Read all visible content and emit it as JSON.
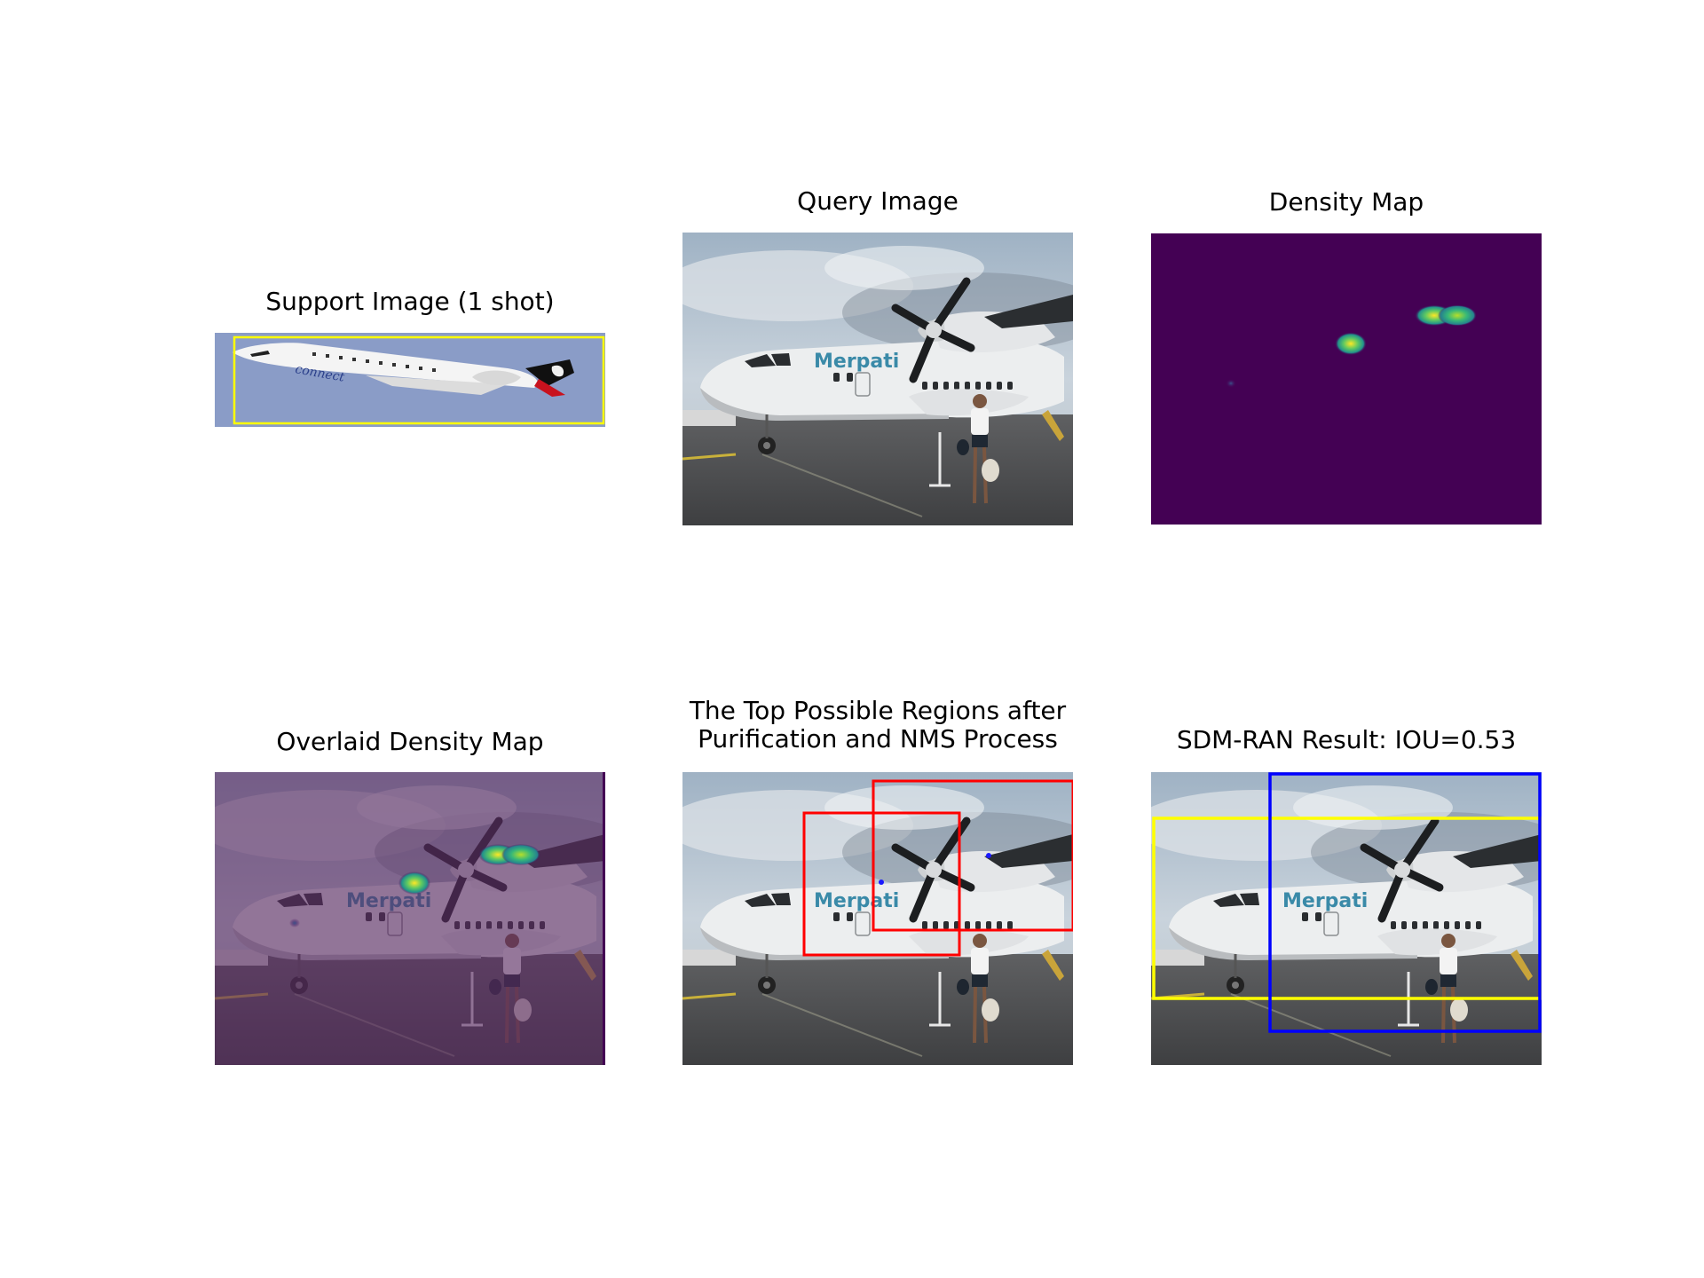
{
  "panels": {
    "support": {
      "title": "Support Image (1 shot)"
    },
    "query": {
      "title": "Query Image"
    },
    "density": {
      "title": "Density Map"
    },
    "overlaid": {
      "title": "Overlaid Density Map"
    },
    "regions": {
      "title_line1": "The Top Possible Regions after",
      "title_line2": "Purification and NMS Process"
    },
    "result": {
      "title": "SDM-RAN Result: IOU=0.53"
    }
  },
  "airplane": {
    "livery_text": "Merpati",
    "support_livery_text": "connect"
  },
  "colors": {
    "ground_truth_box": "#ffff00",
    "prediction_box": "#0000ff",
    "region_box": "#ff0000",
    "density_background": "#440154",
    "overlay_tint": "#5b2a63"
  }
}
